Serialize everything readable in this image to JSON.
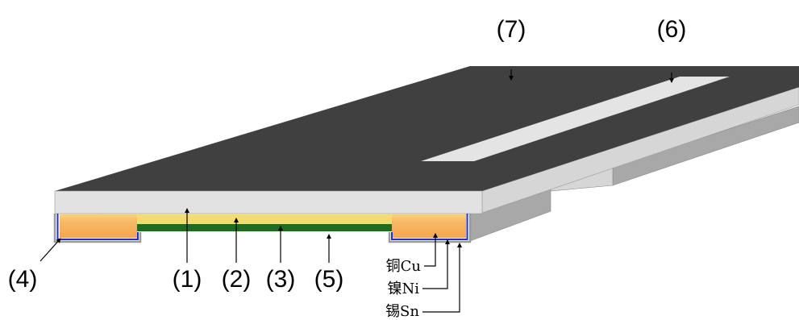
{
  "labels": {
    "label_1": "(1)",
    "label_2": "(2)",
    "label_3": "(3)",
    "label_4": "(4)",
    "label_5": "(5)",
    "label_6": "(6)",
    "label_7": "(7)"
  },
  "plating": {
    "copper": "铜Cu",
    "nickel": "镍Ni",
    "tin": "锡Sn"
  },
  "colors": {
    "top_surface": "#404040",
    "top_strip": "#e4e4e4",
    "front_face": "#e2e2e2",
    "side_face": "#d6d6d6",
    "terminal_gray": "#a8a8a8",
    "yellow_layer": "#f3dc72",
    "green_layer": "#1f6b1f",
    "copper_orange": "#f6a855",
    "nickel_blue": "#1f2fd6",
    "tin_gray": "#9a9a9a"
  }
}
